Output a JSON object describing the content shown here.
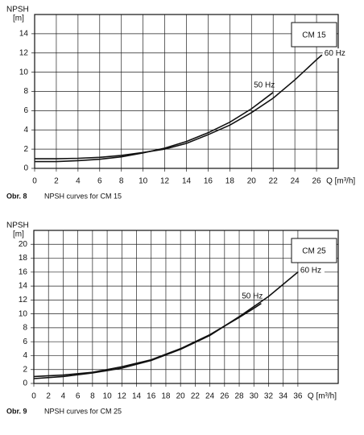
{
  "chart_data": [
    {
      "type": "line",
      "ylabel": "NPSH",
      "yunit": "[m]",
      "xlabel": "Q [m³/h]",
      "box_label": "CM 15",
      "caption_label": "Obr. 8",
      "caption": "NPSH curves for CM 15",
      "xlim": [
        0,
        28
      ],
      "ylim": [
        0,
        16
      ],
      "xticks": [
        0,
        2,
        4,
        6,
        8,
        10,
        12,
        14,
        16,
        18,
        20,
        22,
        24,
        26
      ],
      "yticks": [
        0,
        2,
        4,
        6,
        8,
        10,
        12,
        14
      ],
      "grid": true,
      "series": [
        {
          "name": "50 Hz",
          "color": "#111111",
          "x": [
            0,
            2,
            4,
            6,
            8,
            10,
            12,
            14,
            16,
            18,
            20,
            22
          ],
          "values": [
            0.7,
            0.7,
            0.8,
            0.95,
            1.2,
            1.6,
            2.1,
            2.8,
            3.7,
            4.8,
            6.2,
            7.9
          ]
        },
        {
          "name": "60 Hz",
          "color": "#111111",
          "x": [
            0,
            2,
            4,
            6,
            8,
            10,
            12,
            14,
            16,
            18,
            20,
            22,
            24,
            26,
            26.5
          ],
          "values": [
            1.0,
            1.0,
            1.05,
            1.15,
            1.35,
            1.65,
            2.0,
            2.6,
            3.5,
            4.5,
            5.8,
            7.3,
            9.2,
            11.3,
            11.8
          ]
        }
      ]
    },
    {
      "type": "line",
      "ylabel": "NPSH",
      "yunit": "[m]",
      "xlabel": "Q [m³/h]",
      "box_label": "CM 25",
      "caption_label": "Obr. 9",
      "caption": "NPSH curves for CM 25",
      "xlim": [
        0,
        41.5
      ],
      "ylim": [
        0,
        22
      ],
      "xticks": [
        0,
        2,
        4,
        6,
        8,
        10,
        12,
        14,
        16,
        18,
        20,
        22,
        24,
        26,
        28,
        30,
        32,
        34,
        36
      ],
      "yticks": [
        0,
        2,
        4,
        6,
        8,
        10,
        12,
        14,
        16,
        18,
        20
      ],
      "grid": true,
      "series": [
        {
          "name": "50 Hz",
          "color": "#111111",
          "x": [
            0,
            4,
            8,
            12,
            16,
            20,
            24,
            28,
            30,
            31
          ],
          "values": [
            1.0,
            1.2,
            1.6,
            2.4,
            3.4,
            5.0,
            7.0,
            9.5,
            10.8,
            11.5
          ]
        },
        {
          "name": "60 Hz",
          "color": "#111111",
          "x": [
            0,
            4,
            8,
            12,
            16,
            20,
            24,
            28,
            32,
            36
          ],
          "values": [
            0.7,
            1.0,
            1.5,
            2.2,
            3.3,
            4.9,
            6.9,
            9.6,
            12.5,
            16.0
          ]
        }
      ]
    }
  ]
}
